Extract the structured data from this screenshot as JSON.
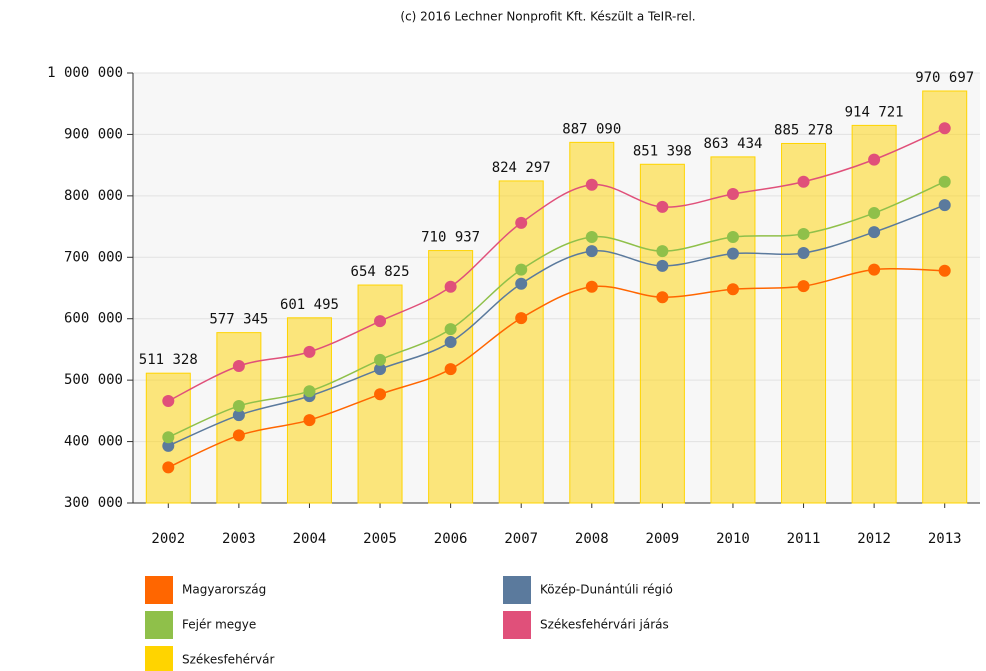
{
  "chart_data": {
    "type": "combo",
    "title": "(c) 2016 Lechner Nonprofit Kft. Készült a TeIR-rel.",
    "categories": [
      "2002",
      "2003",
      "2004",
      "2005",
      "2006",
      "2007",
      "2008",
      "2009",
      "2010",
      "2011",
      "2012",
      "2013"
    ],
    "series": [
      {
        "name": "Magyarország",
        "type": "line",
        "color": "#ff6600",
        "values": [
          358000,
          410000,
          435000,
          477000,
          518000,
          601000,
          652000,
          635000,
          648000,
          653000,
          680000,
          678000
        ]
      },
      {
        "name": "Közép-Dunántúli régió",
        "type": "line",
        "color": "#5b7a9d",
        "values": [
          393000,
          443000,
          474000,
          518000,
          562000,
          657000,
          710000,
          686000,
          706000,
          707000,
          741000,
          785000
        ]
      },
      {
        "name": "Fejér megye",
        "type": "line",
        "color": "#8fc04a",
        "values": [
          407000,
          458000,
          482000,
          533000,
          583000,
          680000,
          733000,
          710000,
          733000,
          738000,
          772000,
          823000
        ]
      },
      {
        "name": "Székesfehérvári járás",
        "type": "line",
        "color": "#e0507a",
        "values": [
          466000,
          523000,
          546000,
          596000,
          652000,
          756000,
          818000,
          782000,
          803000,
          823000,
          859000,
          910000
        ]
      },
      {
        "name": "Székesfehérvár",
        "type": "bar",
        "color": "#ffd400",
        "values": [
          511328,
          577345,
          601495,
          654825,
          710937,
          824297,
          887090,
          851398,
          863434,
          885278,
          914721,
          970697
        ],
        "value_labels": [
          "511 328",
          "577 345",
          "601 495",
          "654 825",
          "710 937",
          "824 297",
          "887 090",
          "851 398",
          "863 434",
          "885 278",
          "914 721",
          "970 697"
        ]
      }
    ],
    "ylim": [
      300000,
      1000000
    ],
    "yticks": [
      {
        "value": 300000,
        "label": "300 000"
      },
      {
        "value": 400000,
        "label": "400 000"
      },
      {
        "value": 500000,
        "label": "500 000"
      },
      {
        "value": 600000,
        "label": "600 000"
      },
      {
        "value": 700000,
        "label": "700 000"
      },
      {
        "value": 800000,
        "label": "800 000"
      },
      {
        "value": 900000,
        "label": "900 000"
      },
      {
        "value": 1000000,
        "label": "1 000 000"
      }
    ],
    "grid": true
  }
}
